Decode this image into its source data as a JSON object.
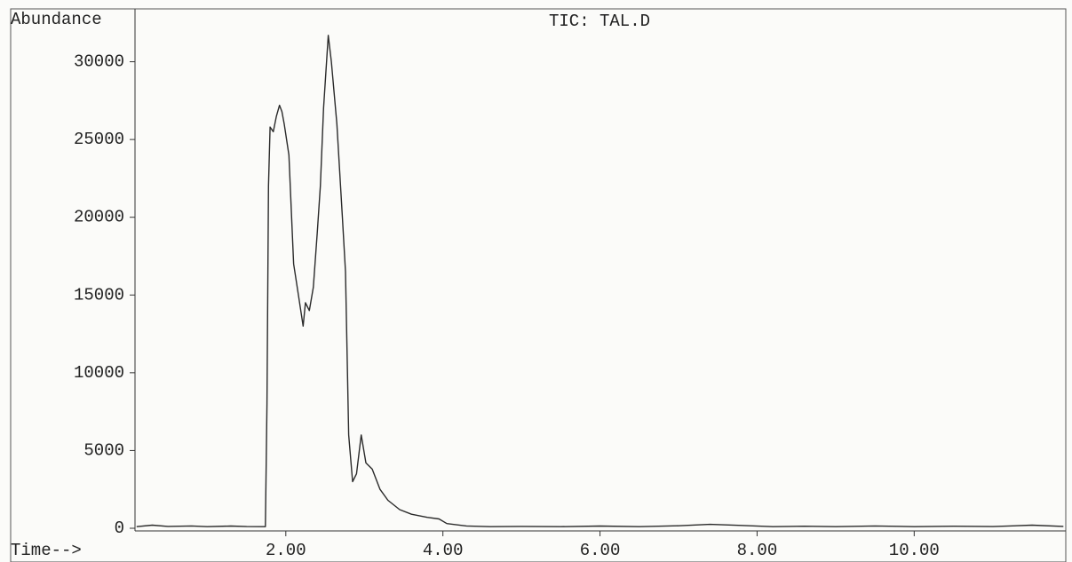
{
  "chart_data": {
    "type": "line",
    "title": "TIC: TAL.D",
    "y_label": "Abundance",
    "x_label": "Time-->",
    "x": [
      0.1,
      0.3,
      0.5,
      0.8,
      1.0,
      1.3,
      1.5,
      1.7,
      1.74,
      1.76,
      1.78,
      1.8,
      1.84,
      1.88,
      1.92,
      1.95,
      1.98,
      2.04,
      2.1,
      2.16,
      2.22,
      2.25,
      2.3,
      2.35,
      2.4,
      2.44,
      2.48,
      2.54,
      2.58,
      2.65,
      2.72,
      2.76,
      2.8,
      2.85,
      2.9,
      2.96,
      3.02,
      3.1,
      3.2,
      3.3,
      3.45,
      3.6,
      3.8,
      3.95,
      4.05,
      4.3,
      4.6,
      5.0,
      5.5,
      6.0,
      6.5,
      7.0,
      7.4,
      7.8,
      8.2,
      8.6,
      9.0,
      9.5,
      10.0,
      10.5,
      11.0,
      11.5,
      11.9
    ],
    "values": [
      100,
      200,
      120,
      150,
      100,
      140,
      110,
      100,
      100,
      8000,
      22000,
      25800,
      25500,
      26500,
      27200,
      26800,
      26000,
      24000,
      17000,
      15000,
      13000,
      14500,
      14000,
      15500,
      19000,
      22000,
      27000,
      31700,
      30000,
      26000,
      20000,
      16500,
      6000,
      3000,
      3500,
      6000,
      4200,
      3800,
      2500,
      1800,
      1200,
      900,
      700,
      600,
      300,
      150,
      100,
      120,
      100,
      140,
      100,
      160,
      250,
      180,
      100,
      130,
      100,
      150,
      100,
      130,
      110,
      200,
      120
    ],
    "color": "#2a2a2a",
    "xlim": [
      0.08,
      11.93
    ],
    "xticks": [
      {
        "value": 2,
        "label": "2.00"
      },
      {
        "value": 4,
        "label": "4.00"
      },
      {
        "value": 6,
        "label": "6.00"
      },
      {
        "value": 8,
        "label": "8.00"
      },
      {
        "value": 10,
        "label": "10.00"
      }
    ],
    "ylim": [
      0,
      33400
    ],
    "yticks": [
      0,
      5000,
      10000,
      15000,
      20000,
      25000,
      30000
    ]
  }
}
